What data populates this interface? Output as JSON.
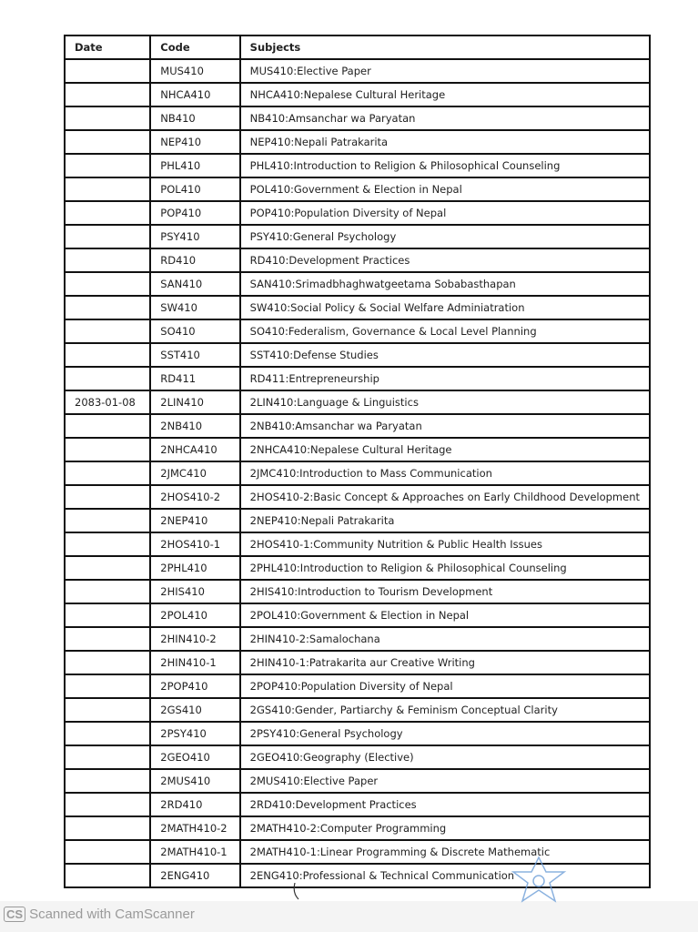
{
  "table": {
    "headers": [
      "Date",
      "Code",
      "Subjects"
    ],
    "rows": [
      {
        "date": "",
        "code": "MUS410",
        "subject": "MUS410:Elective Paper"
      },
      {
        "date": "",
        "code": "NHCA410",
        "subject": "NHCA410:Nepalese Cultural Heritage"
      },
      {
        "date": "",
        "code": "NB410",
        "subject": "NB410:Amsanchar wa Paryatan"
      },
      {
        "date": "",
        "code": "NEP410",
        "subject": "NEP410:Nepali Patrakarita"
      },
      {
        "date": "",
        "code": "PHL410",
        "subject": "PHL410:Introduction to Religion & Philosophical Counseling"
      },
      {
        "date": "",
        "code": "POL410",
        "subject": "POL410:Government & Election in Nepal"
      },
      {
        "date": "",
        "code": "POP410",
        "subject": "POP410:Population Diversity of Nepal"
      },
      {
        "date": "",
        "code": "PSY410",
        "subject": "PSY410:General Psychology"
      },
      {
        "date": "",
        "code": "RD410",
        "subject": "RD410:Development Practices"
      },
      {
        "date": "",
        "code": "SAN410",
        "subject": "SAN410:Srimadbhaghwatgeetama Sobabasthapan"
      },
      {
        "date": "",
        "code": "SW410",
        "subject": "SW410:Social Policy & Social Welfare Adminiatration"
      },
      {
        "date": "",
        "code": "SO410",
        "subject": "SO410:Federalism, Governance & Local Level Planning"
      },
      {
        "date": "",
        "code": "SST410",
        "subject": "SST410:Defense Studies"
      },
      {
        "date": "",
        "code": "RD411",
        "subject": "RD411:Entrepreneurship"
      },
      {
        "date": "2083-01-08",
        "code": "2LIN410",
        "subject": "2LIN410:Language & Linguistics"
      },
      {
        "date": "",
        "code": "2NB410",
        "subject": "2NB410:Amsanchar wa Paryatan"
      },
      {
        "date": "",
        "code": "2NHCA410",
        "subject": "2NHCA410:Nepalese Cultural Heritage"
      },
      {
        "date": "",
        "code": "2JMC410",
        "subject": "2JMC410:Introduction to Mass Communication"
      },
      {
        "date": "",
        "code": "2HOS410-2",
        "subject": "2HOS410-2:Basic Concept & Approaches on Early Childhood Development"
      },
      {
        "date": "",
        "code": "2NEP410",
        "subject": "2NEP410:Nepali Patrakarita"
      },
      {
        "date": "",
        "code": "2HOS410-1",
        "subject": "2HOS410-1:Community Nutrition & Public Health Issues"
      },
      {
        "date": "",
        "code": "2PHL410",
        "subject": "2PHL410:Introduction to Religion & Philosophical Counseling"
      },
      {
        "date": "",
        "code": "2HIS410",
        "subject": "2HIS410:Introduction to Tourism Development"
      },
      {
        "date": "",
        "code": "2POL410",
        "subject": "2POL410:Government & Election in Nepal"
      },
      {
        "date": "",
        "code": "2HIN410-2",
        "subject": "2HIN410-2:Samalochana"
      },
      {
        "date": "",
        "code": "2HIN410-1",
        "subject": "2HIN410-1:Patrakarita aur Creative Writing"
      },
      {
        "date": "",
        "code": "2POP410",
        "subject": "2POP410:Population Diversity of Nepal"
      },
      {
        "date": "",
        "code": "2GS410",
        "subject": "2GS410:Gender, Partiarchy & Feminism Conceptual Clarity"
      },
      {
        "date": "",
        "code": "2PSY410",
        "subject": "2PSY410:General Psychology"
      },
      {
        "date": "",
        "code": "2GEO410",
        "subject": "2GEO410:Geography (Elective)"
      },
      {
        "date": "",
        "code": "2MUS410",
        "subject": "2MUS410:Elective Paper"
      },
      {
        "date": "",
        "code": "2RD410",
        "subject": "2RD410:Development Practices"
      },
      {
        "date": "",
        "code": "2MATH410-2",
        "subject": "2MATH410-2:Computer Programming"
      },
      {
        "date": "",
        "code": "2MATH410-1",
        "subject": "2MATH410-1:Linear Programming & Discrete Mathematic"
      },
      {
        "date": "",
        "code": "2ENG410",
        "subject": "2ENG410:Professional & Technical Communication"
      }
    ]
  },
  "stamp_color": "#6f9fd8",
  "footer": {
    "logo": "CS",
    "text": "Scanned with CamScanner"
  }
}
